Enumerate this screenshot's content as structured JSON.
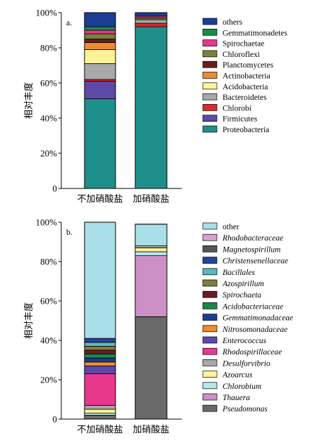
{
  "chart_data": [
    {
      "type": "bar",
      "stacked": true,
      "panel_label": "a.",
      "ylabel": "相对丰度",
      "ylim": [
        0,
        100
      ],
      "y_ticks": [
        "0",
        "20%",
        "40%",
        "60%",
        "80%",
        "100%"
      ],
      "categories": [
        "不加硝酸盐",
        "加硝酸盐"
      ],
      "legend_position": "right",
      "series": [
        {
          "name": "Proteobacteria",
          "color": "#1f8f8b",
          "values": [
            51,
            92
          ]
        },
        {
          "name": "Firmicutes",
          "color": "#5c49a8",
          "values": [
            10,
            0
          ]
        },
        {
          "name": "Chlorobi",
          "color": "#e2262b",
          "values": [
            1,
            2
          ]
        },
        {
          "name": "Bacteroidetes",
          "color": "#a9a9a9",
          "values": [
            9,
            2
          ]
        },
        {
          "name": "Acidobacteria",
          "color": "#fff39a",
          "values": [
            8,
            0
          ]
        },
        {
          "name": "Actinobacteria",
          "color": "#f08a2e",
          "values": [
            4,
            0
          ]
        },
        {
          "name": "Planctomycetes",
          "color": "#6b1c22",
          "values": [
            2,
            0
          ]
        },
        {
          "name": "Chloroflexi",
          "color": "#7f7f3a",
          "values": [
            3,
            1
          ]
        },
        {
          "name": "Spirochaetae",
          "color": "#e8388e",
          "values": [
            2,
            1
          ]
        },
        {
          "name": "Gemmatimonadetes",
          "color": "#1a8a4a",
          "values": [
            2,
            0
          ]
        },
        {
          "name": "others",
          "color": "#1b3f94",
          "values": [
            8,
            2
          ]
        }
      ]
    },
    {
      "type": "bar",
      "stacked": true,
      "panel_label": "b.",
      "ylabel": "相对丰度",
      "ylim": [
        0,
        100
      ],
      "y_ticks": [
        "0",
        "20%",
        "40%",
        "60%",
        "80%",
        "100%"
      ],
      "categories": [
        "不加硝酸盐",
        "加硝酸盐"
      ],
      "legend_position": "right",
      "series": [
        {
          "name": "Pseudomonas",
          "italic": true,
          "color": "#6a6a6a",
          "values": [
            2,
            52
          ]
        },
        {
          "name": "Thauera",
          "italic": true,
          "color": "#cc8fc6",
          "values": [
            0,
            31
          ]
        },
        {
          "name": "Chlorobium",
          "italic": true,
          "color": "#b8e6ec",
          "values": [
            1,
            2
          ]
        },
        {
          "name": "Azoarcus",
          "italic": true,
          "color": "#fff39a",
          "values": [
            2,
            2
          ]
        },
        {
          "name": "Desulforvibrio",
          "italic": true,
          "color": "#a9a9a9",
          "values": [
            2,
            1
          ]
        },
        {
          "name": "Rhodospirillaceae",
          "italic": true,
          "color": "#e8388e",
          "values": [
            16,
            0
          ]
        },
        {
          "name": "Enterococcus",
          "italic": true,
          "color": "#5c49a8",
          "values": [
            4,
            0
          ]
        },
        {
          "name": "Nitrosomonadaceae",
          "italic": true,
          "color": "#f08a2e",
          "values": [
            2,
            0
          ]
        },
        {
          "name": "Gemmatimonadaceae",
          "italic": true,
          "color": "#1b3f94",
          "values": [
            2,
            0
          ]
        },
        {
          "name": "Acidobacteriaceae",
          "italic": true,
          "color": "#1a8a4a",
          "values": [
            2,
            0
          ]
        },
        {
          "name": "Spirochaeta",
          "italic": true,
          "color": "#6b1c22",
          "values": [
            2,
            0
          ]
        },
        {
          "name": "Azospirillum",
          "italic": true,
          "color": "#7f7f3a",
          "values": [
            2,
            0
          ]
        },
        {
          "name": "Bacillales",
          "italic": true,
          "color": "#5ab7c4",
          "values": [
            2,
            0
          ]
        },
        {
          "name": "Christensenellaceae",
          "italic": true,
          "color": "#2346a0",
          "values": [
            2,
            0
          ]
        },
        {
          "name": "Magnetospirillum",
          "italic": true,
          "color": "#555555",
          "values": [
            0,
            0
          ]
        },
        {
          "name": "Rhodobacteraceae",
          "italic": true,
          "color": "#d9a1d3",
          "values": [
            0,
            0
          ]
        },
        {
          "name": "other",
          "italic": false,
          "color": "#a8dfe8",
          "values": [
            59,
            11
          ]
        }
      ]
    }
  ]
}
